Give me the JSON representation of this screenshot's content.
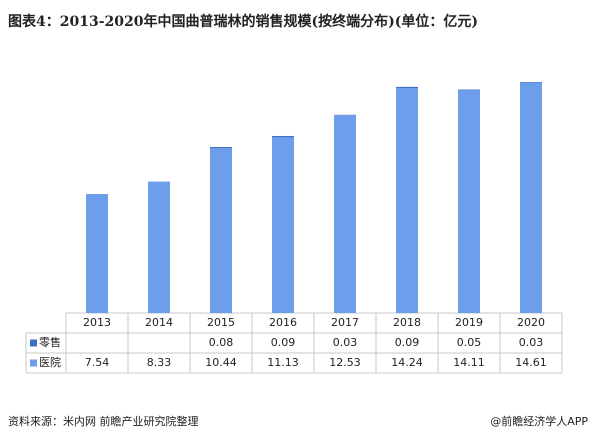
{
  "chart_data": {
    "type": "bar",
    "stacked": true,
    "title": "图表4：2013-2020年中国曲普瑞林的销售规模(按终端分布)(单位：亿元)",
    "categories": [
      "2013",
      "2014",
      "2015",
      "2016",
      "2017",
      "2018",
      "2019",
      "2020"
    ],
    "series": [
      {
        "name": "零售",
        "color": "#3f70c9",
        "values": [
          null,
          null,
          0.08,
          0.09,
          0.03,
          0.09,
          0.05,
          0.03
        ]
      },
      {
        "name": "医院",
        "color": "#6d9eeb",
        "values": [
          7.54,
          8.33,
          10.44,
          11.13,
          12.53,
          14.24,
          14.11,
          14.61
        ]
      }
    ],
    "source": "资料来源：米内网 前瞻产业研究院整理",
    "credit": "@前瞻经济学人APP"
  }
}
